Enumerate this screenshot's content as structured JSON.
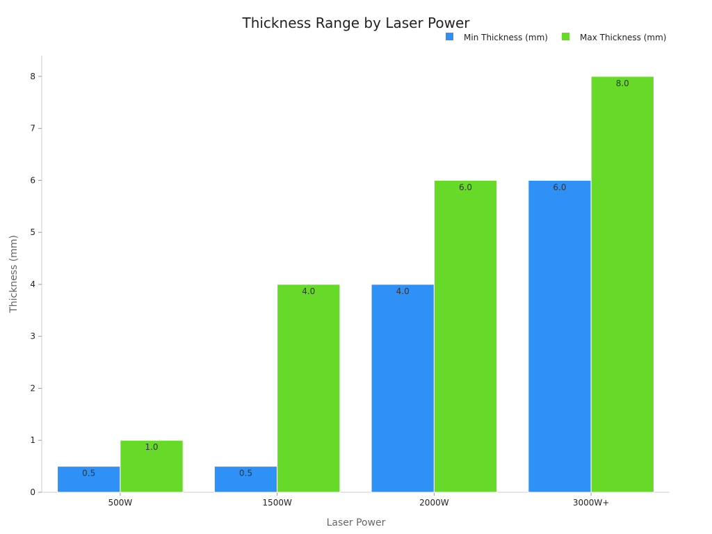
{
  "chart_data": {
    "type": "bar",
    "title": "Thickness Range by Laser Power",
    "xlabel": "Laser Power",
    "ylabel": "Thickness (mm)",
    "categories": [
      "500W",
      "1500W",
      "2000W",
      "3000W+"
    ],
    "series": [
      {
        "name": "Min Thickness (mm)",
        "color": "#2f91f5",
        "values": [
          0.5,
          0.5,
          4.0,
          6.0
        ],
        "labels": [
          "0.5",
          "0.5",
          "4.0",
          "6.0"
        ]
      },
      {
        "name": "Max Thickness (mm)",
        "color": "#66d929",
        "values": [
          1.0,
          4.0,
          6.0,
          8.0
        ],
        "labels": [
          "1.0",
          "4.0",
          "6.0",
          "8.0"
        ]
      }
    ],
    "ylim": [
      0,
      8.4
    ],
    "yticks": [
      0,
      1,
      2,
      3,
      4,
      5,
      6,
      7,
      8
    ],
    "grid": false,
    "legend_position": "top-right"
  }
}
